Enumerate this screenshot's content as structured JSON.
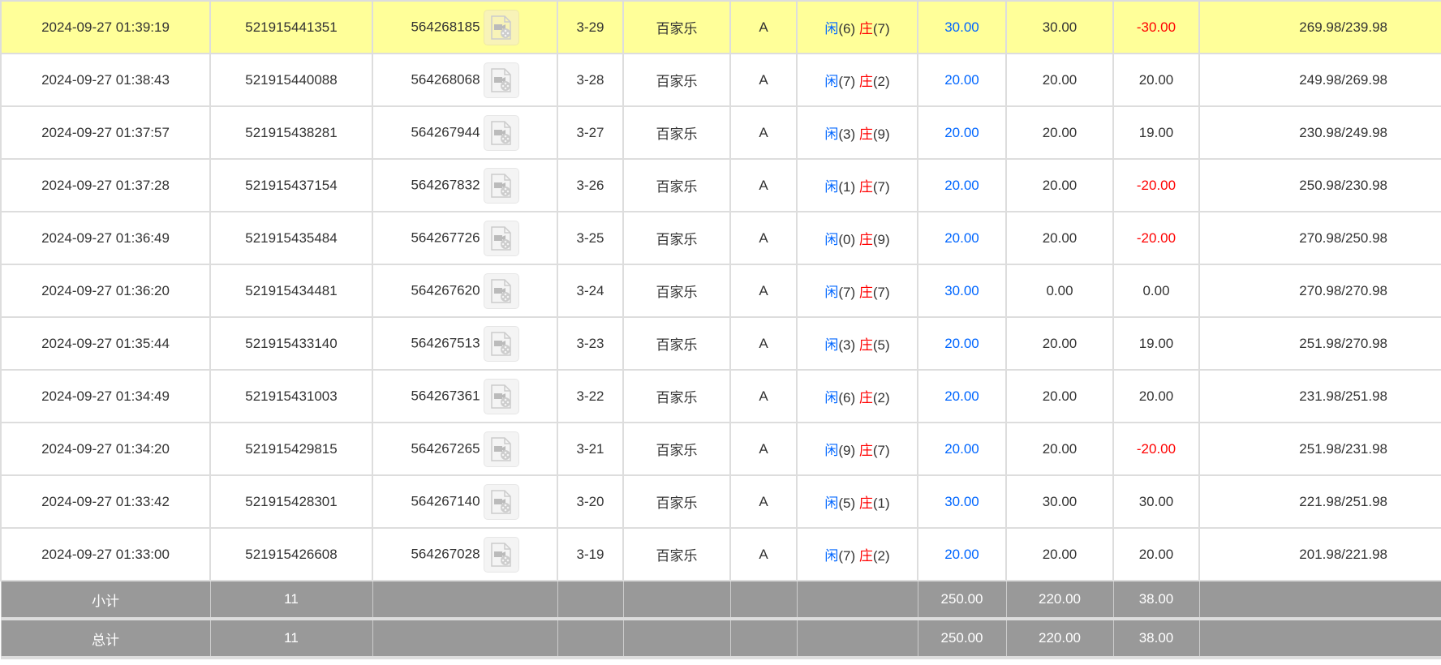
{
  "rows": [
    {
      "time": "2024-09-27 01:39:19",
      "id": "521915441351",
      "round": "564268185",
      "shoe": "3-29",
      "game": "百家乐",
      "table": "A",
      "player_label": "闲",
      "player": "(6)",
      "banker_label": "庄",
      "banker": "(7)",
      "bet": "30.00",
      "valid": "30.00",
      "win": "-30.00",
      "balance": "269.98/239.98",
      "highlight": true
    },
    {
      "time": "2024-09-27 01:38:43",
      "id": "521915440088",
      "round": "564268068",
      "shoe": "3-28",
      "game": "百家乐",
      "table": "A",
      "player_label": "闲",
      "player": "(7)",
      "banker_label": "庄",
      "banker": "(2)",
      "bet": "20.00",
      "valid": "20.00",
      "win": "20.00",
      "balance": "249.98/269.98"
    },
    {
      "time": "2024-09-27 01:37:57",
      "id": "521915438281",
      "round": "564267944",
      "shoe": "3-27",
      "game": "百家乐",
      "table": "A",
      "player_label": "闲",
      "player": "(3)",
      "banker_label": "庄",
      "banker": "(9)",
      "bet": "20.00",
      "valid": "20.00",
      "win": "19.00",
      "balance": "230.98/249.98"
    },
    {
      "time": "2024-09-27 01:37:28",
      "id": "521915437154",
      "round": "564267832",
      "shoe": "3-26",
      "game": "百家乐",
      "table": "A",
      "player_label": "闲",
      "player": "(1)",
      "banker_label": "庄",
      "banker": "(7)",
      "bet": "20.00",
      "valid": "20.00",
      "win": "-20.00",
      "balance": "250.98/230.98"
    },
    {
      "time": "2024-09-27 01:36:49",
      "id": "521915435484",
      "round": "564267726",
      "shoe": "3-25",
      "game": "百家乐",
      "table": "A",
      "player_label": "闲",
      "player": "(0)",
      "banker_label": "庄",
      "banker": "(9)",
      "bet": "20.00",
      "valid": "20.00",
      "win": "-20.00",
      "balance": "270.98/250.98"
    },
    {
      "time": "2024-09-27 01:36:20",
      "id": "521915434481",
      "round": "564267620",
      "shoe": "3-24",
      "game": "百家乐",
      "table": "A",
      "player_label": "闲",
      "player": "(7)",
      "banker_label": "庄",
      "banker": "(7)",
      "bet": "30.00",
      "valid": "0.00",
      "win": "0.00",
      "balance": "270.98/270.98"
    },
    {
      "time": "2024-09-27 01:35:44",
      "id": "521915433140",
      "round": "564267513",
      "shoe": "3-23",
      "game": "百家乐",
      "table": "A",
      "player_label": "闲",
      "player": "(3)",
      "banker_label": "庄",
      "banker": "(5)",
      "bet": "20.00",
      "valid": "20.00",
      "win": "19.00",
      "balance": "251.98/270.98"
    },
    {
      "time": "2024-09-27 01:34:49",
      "id": "521915431003",
      "round": "564267361",
      "shoe": "3-22",
      "game": "百家乐",
      "table": "A",
      "player_label": "闲",
      "player": "(6)",
      "banker_label": "庄",
      "banker": "(2)",
      "bet": "20.00",
      "valid": "20.00",
      "win": "20.00",
      "balance": "231.98/251.98"
    },
    {
      "time": "2024-09-27 01:34:20",
      "id": "521915429815",
      "round": "564267265",
      "shoe": "3-21",
      "game": "百家乐",
      "table": "A",
      "player_label": "闲",
      "player": "(9)",
      "banker_label": "庄",
      "banker": "(7)",
      "bet": "20.00",
      "valid": "20.00",
      "win": "-20.00",
      "balance": "251.98/231.98"
    },
    {
      "time": "2024-09-27 01:33:42",
      "id": "521915428301",
      "round": "564267140",
      "shoe": "3-20",
      "game": "百家乐",
      "table": "A",
      "player_label": "闲",
      "player": "(5)",
      "banker_label": "庄",
      "banker": "(1)",
      "bet": "30.00",
      "valid": "30.00",
      "win": "30.00",
      "balance": "221.98/251.98"
    },
    {
      "time": "2024-09-27 01:33:00",
      "id": "521915426608",
      "round": "564267028",
      "shoe": "3-19",
      "game": "百家乐",
      "table": "A",
      "player_label": "闲",
      "player": "(7)",
      "banker_label": "庄",
      "banker": "(2)",
      "bet": "20.00",
      "valid": "20.00",
      "win": "20.00",
      "balance": "201.98/221.98"
    }
  ],
  "summary": [
    {
      "label": "小计",
      "count": "11",
      "bet": "250.00",
      "valid": "220.00",
      "win": "38.00"
    },
    {
      "label": "总计",
      "count": "11",
      "bet": "250.00",
      "valid": "220.00",
      "win": "38.00"
    }
  ],
  "colors": {
    "highlight": "#ffff99",
    "player": "#0066ff",
    "banker": "#ff0000",
    "negative": "#ff0000",
    "summary_bg": "#999999"
  },
  "icons": {
    "replay": "video-file-icon"
  }
}
